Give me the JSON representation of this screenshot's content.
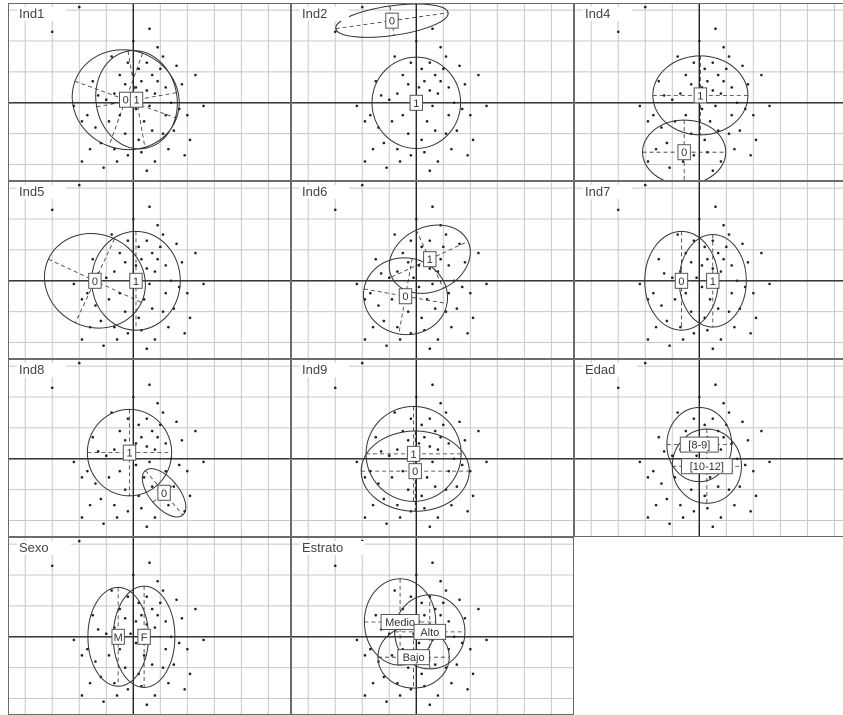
{
  "chart_data": [
    {
      "type": "scatter",
      "title": "Ind1",
      "groups": [
        {
          "label": "0",
          "center": [
            -0.14,
            0.05
          ],
          "rx": 1.0,
          "ry": 0.8,
          "rot": -20
        },
        {
          "label": "1",
          "center": [
            0.06,
            0.05
          ],
          "rx": 0.75,
          "ry": 0.8,
          "rot": 10
        }
      ]
    },
    {
      "type": "scatter",
      "title": "Ind2",
      "groups": [
        {
          "label": "0",
          "center": [
            -0.45,
            1.33
          ],
          "rx": 1.05,
          "ry": 0.24,
          "rot": 8
        },
        {
          "label": "1",
          "center": [
            0.0,
            0.0
          ],
          "rx": 0.82,
          "ry": 0.74,
          "rot": 0
        }
      ]
    },
    {
      "type": "scatter",
      "title": "Ind4",
      "groups": [
        {
          "label": "1",
          "center": [
            0.02,
            0.12
          ],
          "rx": 0.88,
          "ry": 0.64,
          "rot": 0
        },
        {
          "label": "0",
          "center": [
            -0.28,
            -0.8
          ],
          "rx": 0.77,
          "ry": 0.52,
          "rot": 0
        }
      ]
    },
    {
      "type": "scatter",
      "title": "Ind5",
      "groups": [
        {
          "label": "0",
          "center": [
            -0.71,
            0.0
          ],
          "rx": 0.95,
          "ry": 0.75,
          "rot": -25
        },
        {
          "label": "1",
          "center": [
            0.05,
            0.0
          ],
          "rx": 0.82,
          "ry": 0.8,
          "rot": 0
        }
      ]
    },
    {
      "type": "scatter",
      "title": "Ind6",
      "groups": [
        {
          "label": "1",
          "center": [
            0.25,
            0.35
          ],
          "rx": 0.78,
          "ry": 0.52,
          "rot": 25
        },
        {
          "label": "0",
          "center": [
            -0.2,
            -0.25
          ],
          "rx": 0.78,
          "ry": 0.62,
          "rot": -10
        }
      ]
    },
    {
      "type": "scatter",
      "title": "Ind7",
      "groups": [
        {
          "label": "0",
          "center": [
            -0.33,
            0.0
          ],
          "rx": 0.68,
          "ry": 0.8,
          "rot": 0
        },
        {
          "label": "1",
          "center": [
            0.25,
            0.0
          ],
          "rx": 0.62,
          "ry": 0.75,
          "rot": 0
        }
      ]
    },
    {
      "type": "scatter",
      "title": "Ind8",
      "groups": [
        {
          "label": "1",
          "center": [
            -0.07,
            0.1
          ],
          "rx": 0.78,
          "ry": 0.7,
          "rot": 0
        },
        {
          "label": "0",
          "center": [
            0.57,
            -0.55
          ],
          "rx": 0.27,
          "ry": 0.47,
          "rot": 40
        }
      ]
    },
    {
      "type": "scatter",
      "title": "Ind9",
      "groups": [
        {
          "label": "1",
          "center": [
            -0.05,
            0.08
          ],
          "rx": 0.88,
          "ry": 0.77,
          "rot": 0
        },
        {
          "label": "0",
          "center": [
            -0.02,
            -0.2
          ],
          "rx": 1.0,
          "ry": 0.65,
          "rot": 0
        }
      ]
    },
    {
      "type": "scatter",
      "title": "Edad",
      "groups": [
        {
          "label": "[8-9]",
          "center": [
            0.0,
            0.23
          ],
          "rx": 0.6,
          "ry": 0.6,
          "rot": 0
        },
        {
          "label": "[10-12]",
          "center": [
            0.14,
            -0.12
          ],
          "rx": 0.64,
          "ry": 0.6,
          "rot": 0
        }
      ]
    },
    {
      "type": "scatter",
      "title": "Sexo",
      "groups": [
        {
          "label": "M",
          "center": [
            -0.28,
            0.0
          ],
          "rx": 0.56,
          "ry": 0.8,
          "rot": 0
        },
        {
          "label": "F",
          "center": [
            0.2,
            0.0
          ],
          "rx": 0.57,
          "ry": 0.82,
          "rot": 0
        }
      ]
    },
    {
      "type": "scatter",
      "title": "Estrato",
      "groups": [
        {
          "label": "Medio",
          "center": [
            -0.3,
            0.24
          ],
          "rx": 0.66,
          "ry": 0.7,
          "rot": 0
        },
        {
          "label": "Alto",
          "center": [
            0.25,
            0.08
          ],
          "rx": 0.65,
          "ry": 0.6,
          "rot": 0
        },
        {
          "label": "Bajo",
          "center": [
            -0.05,
            -0.33
          ],
          "rx": 0.66,
          "ry": 0.5,
          "rot": 0
        }
      ]
    }
  ],
  "axes": {
    "xlim": [
      -2.3,
      2.9
    ],
    "ylim": [
      -1.25,
      1.6
    ],
    "grid": true
  },
  "points": [
    [
      -1.0,
      1.55
    ],
    [
      -1.5,
      1.15
    ],
    [
      0.3,
      1.2
    ],
    [
      0.55,
      0.75
    ],
    [
      0.25,
      0.65
    ],
    [
      0.1,
      0.55
    ],
    [
      -0.1,
      0.65
    ],
    [
      0.35,
      0.45
    ],
    [
      0.45,
      0.35
    ],
    [
      0.15,
      0.35
    ],
    [
      -0.15,
      0.3
    ],
    [
      0.05,
      0.25
    ],
    [
      0.25,
      0.2
    ],
    [
      0.4,
      0.15
    ],
    [
      0.6,
      0.25
    ],
    [
      -0.35,
      0.15
    ],
    [
      -0.5,
      0.05
    ],
    [
      -0.65,
      0.12
    ],
    [
      0.7,
      0.0
    ],
    [
      0.85,
      -0.1
    ],
    [
      1.0,
      -0.2
    ],
    [
      -0.85,
      -0.2
    ],
    [
      -0.95,
      -0.3
    ],
    [
      -0.7,
      -0.4
    ],
    [
      -0.45,
      -0.3
    ],
    [
      -0.25,
      -0.2
    ],
    [
      0.05,
      -0.1
    ],
    [
      0.2,
      -0.3
    ],
    [
      0.35,
      -0.45
    ],
    [
      0.55,
      -0.5
    ],
    [
      0.75,
      -0.45
    ],
    [
      1.05,
      -0.6
    ],
    [
      -0.6,
      -0.65
    ],
    [
      -0.35,
      -0.75
    ],
    [
      -0.1,
      -0.85
    ],
    [
      0.15,
      -0.8
    ],
    [
      0.4,
      -0.95
    ],
    [
      -0.95,
      -0.95
    ],
    [
      -0.55,
      -1.05
    ],
    [
      0.25,
      -1.1
    ],
    [
      -0.25,
      0.45
    ],
    [
      0.5,
      0.55
    ],
    [
      -0.05,
      0.05
    ],
    [
      0.3,
      -0.05
    ],
    [
      0.6,
      -0.2
    ],
    [
      -0.15,
      -0.5
    ],
    [
      0.1,
      -0.6
    ],
    [
      0.65,
      -0.75
    ],
    [
      -0.75,
      0.35
    ],
    [
      0.9,
      0.3
    ],
    [
      1.3,
      -0.05
    ],
    [
      -1.1,
      -0.05
    ],
    [
      0.8,
      0.6
    ],
    [
      -0.3,
      -0.95
    ],
    [
      0.45,
      0.9
    ],
    [
      0.0,
      1.0
    ],
    [
      -0.4,
      0.75
    ],
    [
      1.15,
      0.45
    ],
    [
      -0.8,
      -0.75
    ],
    [
      0.95,
      -0.85
    ]
  ],
  "colors": {
    "grid": "#c8c8c8",
    "axis": "#222222",
    "border": "#6b6b6b",
    "text": "#444444"
  }
}
